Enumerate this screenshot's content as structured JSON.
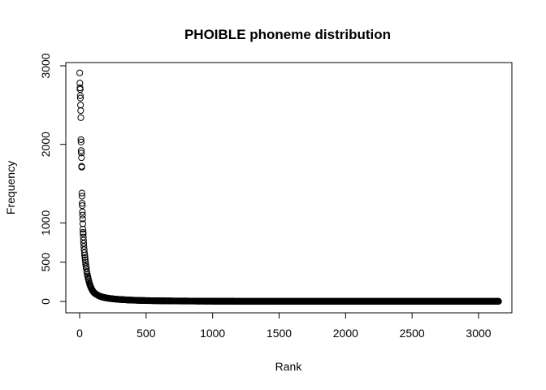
{
  "chart_data": {
    "type": "scatter",
    "title": "PHOIBLE phoneme distribution",
    "xlabel": "Rank",
    "ylabel": "Frequency",
    "xlim": [
      1,
      3150
    ],
    "ylim": [
      0,
      3000
    ],
    "x_ticks": [
      0,
      500,
      1000,
      1500,
      2000,
      2500,
      3000
    ],
    "x_tick_labels": [
      "0",
      "500",
      "1000",
      "1500",
      "2000",
      "2500",
      "3000"
    ],
    "y_ticks": [
      0,
      500,
      1000,
      2000,
      3000
    ],
    "y_tick_labels": [
      "0",
      "500",
      "1000",
      "2000",
      "3000"
    ],
    "marker": "open-circle",
    "point_color": "#000000",
    "grid": false,
    "series": [
      {
        "x": [
          1,
          2,
          3,
          4,
          5,
          6,
          7,
          8,
          9,
          10,
          11,
          12,
          13,
          14,
          15,
          16,
          17,
          18,
          19,
          20,
          21,
          22,
          23,
          24,
          25,
          26,
          27,
          28,
          29,
          30,
          32,
          34,
          36,
          38,
          40,
          42,
          44,
          46,
          48,
          50,
          55,
          60,
          65,
          70,
          75,
          80,
          85,
          90,
          95,
          100,
          110,
          120,
          130,
          140,
          150,
          160,
          175,
          190,
          210,
          230,
          250,
          275,
          300,
          330,
          360,
          400,
          450,
          500,
          560,
          620,
          700,
          800,
          900,
          1000,
          1200,
          1400,
          1600,
          1800,
          2000,
          2200,
          2400,
          2600,
          2800,
          3000,
          3150
        ],
        "y": [
          2910,
          2780,
          2720,
          2700,
          2620,
          2590,
          2500,
          2430,
          2340,
          2060,
          2030,
          1920,
          1890,
          1830,
          1720,
          1710,
          1380,
          1340,
          1250,
          1220,
          1140,
          1100,
          1050,
          990,
          920,
          880,
          860,
          820,
          780,
          740,
          700,
          660,
          620,
          590,
          560,
          530,
          500,
          470,
          445,
          420,
          370,
          325,
          290,
          255,
          225,
          200,
          178,
          160,
          145,
          130,
          110,
          95,
          85,
          76,
          68,
          61,
          54,
          48,
          42,
          37,
          33,
          29,
          25,
          22,
          19,
          16,
          13,
          11,
          9,
          8,
          6,
          5,
          4,
          3,
          2,
          2,
          1,
          1,
          1,
          1,
          1,
          1,
          1,
          1,
          1
        ]
      }
    ]
  }
}
